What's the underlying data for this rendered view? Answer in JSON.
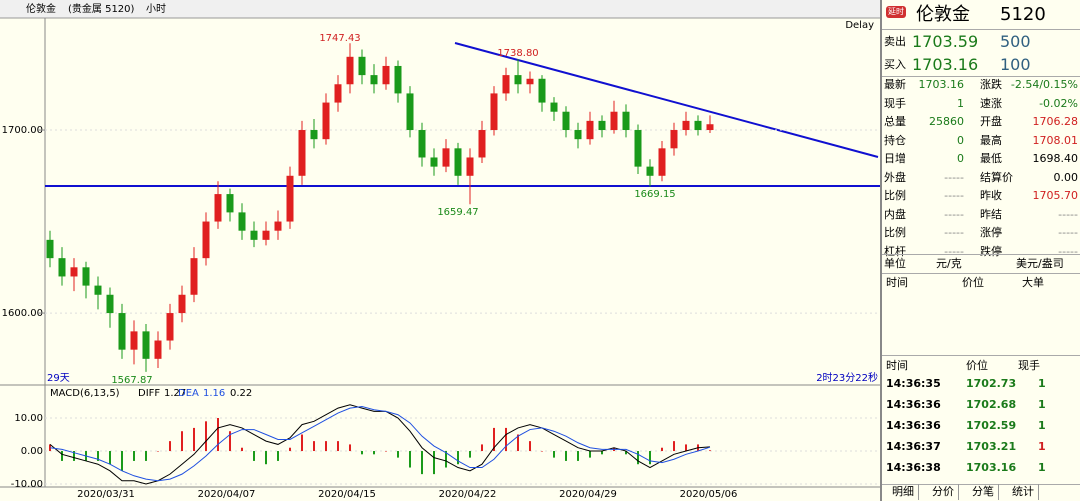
{
  "toolbar": {
    "symbol": "伦敦金",
    "market": "(贵金属 5120)",
    "period": "小时"
  },
  "chart": {
    "delay": "Delay",
    "left_note": "29天",
    "right_note": "2时23分22秒",
    "ylim": [
      1560.7,
      1761.2
    ],
    "yticks": [
      {
        "value": 1700,
        "label": "1700.00"
      },
      {
        "value": 1600,
        "label": "1600.00"
      }
    ],
    "candles": [
      [
        1640,
        1645,
        1625,
        1630
      ],
      [
        1630,
        1636,
        1615,
        1620
      ],
      [
        1620,
        1630,
        1612,
        1625
      ],
      [
        1625,
        1628,
        1608,
        1615
      ],
      [
        1615,
        1620,
        1602,
        1610
      ],
      [
        1610,
        1614,
        1592,
        1600
      ],
      [
        1600,
        1605,
        1575,
        1580
      ],
      [
        1580,
        1596,
        1572,
        1590
      ],
      [
        1590,
        1594,
        1567.87,
        1575
      ],
      [
        1575,
        1590,
        1570,
        1585
      ],
      [
        1585,
        1605,
        1580,
        1600
      ],
      [
        1600,
        1615,
        1595,
        1610
      ],
      [
        1610,
        1636,
        1606,
        1630
      ],
      [
        1630,
        1655,
        1626,
        1650
      ],
      [
        1650,
        1672,
        1646,
        1665
      ],
      [
        1665,
        1668,
        1650,
        1655
      ],
      [
        1655,
        1660,
        1640,
        1645
      ],
      [
        1645,
        1650,
        1636,
        1640
      ],
      [
        1640,
        1650,
        1637,
        1645
      ],
      [
        1645,
        1656,
        1640,
        1650
      ],
      [
        1650,
        1680,
        1646,
        1675
      ],
      [
        1675,
        1705,
        1670,
        1700
      ],
      [
        1700,
        1706,
        1690,
        1695
      ],
      [
        1695,
        1720,
        1692,
        1715
      ],
      [
        1715,
        1730,
        1710,
        1725
      ],
      [
        1725,
        1747.43,
        1720,
        1740
      ],
      [
        1740,
        1744,
        1725,
        1730
      ],
      [
        1730,
        1736,
        1720,
        1725
      ],
      [
        1725,
        1740,
        1722,
        1735
      ],
      [
        1735,
        1738,
        1715,
        1720
      ],
      [
        1720,
        1724,
        1696,
        1700
      ],
      [
        1700,
        1704,
        1680,
        1685
      ],
      [
        1685,
        1690,
        1675,
        1680
      ],
      [
        1680,
        1695,
        1677,
        1690
      ],
      [
        1690,
        1693,
        1670,
        1675
      ],
      [
        1675,
        1690,
        1659.47,
        1685
      ],
      [
        1685,
        1705,
        1682,
        1700
      ],
      [
        1700,
        1724,
        1697,
        1720
      ],
      [
        1720,
        1734,
        1716,
        1730
      ],
      [
        1730,
        1738.8,
        1720,
        1725
      ],
      [
        1725,
        1732,
        1720,
        1728
      ],
      [
        1728,
        1730,
        1710,
        1715
      ],
      [
        1715,
        1718,
        1705,
        1710
      ],
      [
        1710,
        1713,
        1696,
        1700
      ],
      [
        1700,
        1704,
        1690,
        1695
      ],
      [
        1695,
        1710,
        1692,
        1705
      ],
      [
        1705,
        1708,
        1696,
        1700
      ],
      [
        1700,
        1716,
        1698,
        1710
      ],
      [
        1710,
        1714,
        1696,
        1700
      ],
      [
        1700,
        1703,
        1676,
        1680
      ],
      [
        1680,
        1684,
        1669.15,
        1675
      ],
      [
        1675,
        1694,
        1672,
        1690
      ],
      [
        1690,
        1704,
        1686,
        1700
      ],
      [
        1700,
        1710,
        1697,
        1705
      ],
      [
        1705,
        1708,
        1697,
        1700
      ],
      [
        1700,
        1708.01,
        1698.4,
        1703.16
      ]
    ],
    "annotations": [
      "1747.43",
      "1738.80",
      "1659.47",
      "1669.15",
      "1567.87"
    ],
    "dates": [
      "2020/03/31",
      "2020/04/07",
      "2020/04/15",
      "2020/04/22",
      "2020/04/29",
      "2020/05/06"
    ],
    "macd": {
      "name": "MACD(6,13,5)",
      "diff_label": "DIFF",
      "diff_value": "1.27",
      "dea_label": "DEA",
      "dea_value": "1.16",
      "macd_value": "0.22",
      "ylim": [
        -10.9,
        20
      ],
      "yticks": [
        {
          "value": 10,
          "label": "10.00"
        },
        {
          "value": 0,
          "label": "0.00"
        },
        {
          "value": -10,
          "label": "-10.00"
        }
      ],
      "diff": [
        2,
        -1,
        -2,
        -3,
        -4,
        -6,
        -9,
        -9,
        -10,
        -9,
        -7,
        -4,
        -1,
        3,
        7,
        8,
        7,
        5,
        3,
        2,
        4,
        8,
        9,
        11,
        13,
        14,
        13,
        12,
        12,
        10,
        6,
        1,
        -2,
        -3,
        -5,
        -6,
        -4,
        1,
        5,
        7,
        8,
        7,
        5,
        3,
        1,
        0,
        0,
        1,
        0,
        -3,
        -5,
        -3,
        -1,
        0,
        1,
        1.27
      ],
      "dea": [
        1,
        0.5,
        -0.5,
        -1.5,
        -2.5,
        -4,
        -6,
        -7.5,
        -8.5,
        -9,
        -8.5,
        -7,
        -4.5,
        -1.5,
        2,
        5,
        6.5,
        6.5,
        5,
        3.5,
        3.5,
        5.5,
        7.5,
        9.5,
        11.5,
        13,
        13.5,
        12.5,
        12,
        11,
        8.5,
        4.5,
        1.5,
        -0.5,
        -3,
        -5,
        -5,
        -2.5,
        1.5,
        4.5,
        6.5,
        7,
        6,
        4.5,
        2.5,
        1,
        0.5,
        0.5,
        0.5,
        -1,
        -3,
        -3.5,
        -2.5,
        -1,
        0,
        1.16
      ],
      "hist": [
        2,
        -3,
        -3,
        -3,
        -3,
        -4,
        -6,
        -3,
        -3,
        0,
        3,
        6,
        7,
        9,
        10,
        6,
        1,
        -3,
        -4,
        -3,
        1,
        5,
        3,
        3,
        3,
        2,
        -1,
        -1,
        0,
        -2,
        -5,
        -7,
        -7,
        -5,
        -4,
        -2,
        2,
        7,
        7,
        5,
        3,
        0,
        -2,
        -3,
        -3,
        -2,
        -1,
        1,
        -1,
        -4,
        -4,
        1,
        3,
        2,
        2,
        0.22
      ]
    }
  },
  "quote": {
    "badge": "延时",
    "name": "伦敦金",
    "code": "5120",
    "sell": {
      "label": "卖出",
      "price": "1703.59",
      "size": "500"
    },
    "buy": {
      "label": "买入",
      "price": "1703.16",
      "size": "100"
    },
    "rows": [
      [
        "最新",
        "1703.16",
        "涨跌",
        "-2.54/0.15%"
      ],
      [
        "现手",
        "1",
        "速涨",
        "-0.02%"
      ],
      [
        "总量",
        "25860",
        "开盘",
        "1706.28"
      ],
      [
        "持仓",
        "0",
        "最高",
        "1708.01"
      ],
      [
        "日增",
        "0",
        "最低",
        "1698.40"
      ],
      [
        "外盘",
        "-----",
        "结算价",
        "0.00"
      ],
      [
        "比例",
        "-----",
        "昨收",
        "1705.70"
      ],
      [
        "内盘",
        "-----",
        "昨结",
        "-----"
      ],
      [
        "比例",
        "-----",
        "涨停",
        "-----"
      ],
      [
        "杠杆",
        "-----",
        "跌停",
        "-----"
      ]
    ],
    "unit_label": "单位",
    "unit": "元/克",
    "alt_unit": "美元/盎司"
  },
  "big_orders": {
    "headers": [
      "时间",
      "价位",
      "大单"
    ]
  },
  "ticks": {
    "headers": [
      "时间",
      "价位",
      "现手"
    ],
    "rows": [
      [
        "14:36:35",
        "1702.73",
        "1"
      ],
      [
        "14:36:36",
        "1702.68",
        "1"
      ],
      [
        "14:36:36",
        "1702.59",
        "1"
      ],
      [
        "14:36:37",
        "1703.21",
        "1"
      ],
      [
        "14:36:38",
        "1703.16",
        "1"
      ]
    ]
  },
  "tabs": [
    "明细",
    "分价",
    "分笔",
    "统计"
  ]
}
